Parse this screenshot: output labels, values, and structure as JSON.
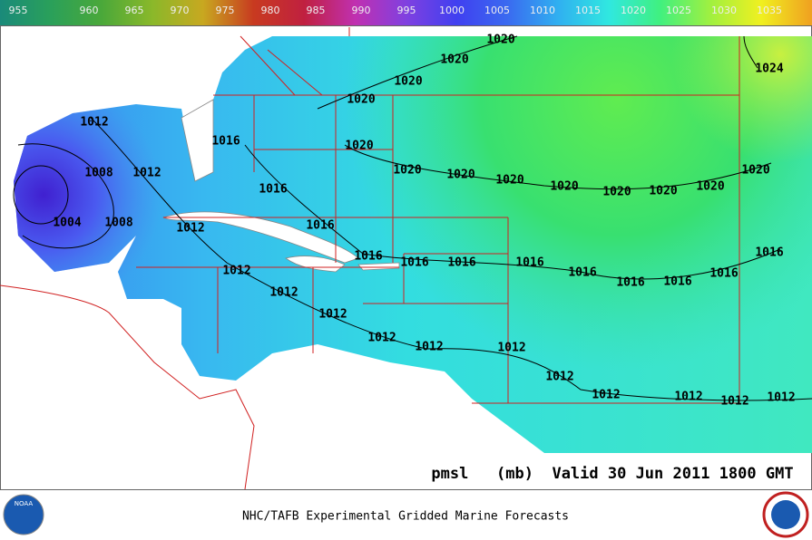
{
  "colorbar": {
    "labels": [
      955,
      960,
      965,
      970,
      975,
      980,
      985,
      990,
      995,
      1000,
      1005,
      1010,
      1015,
      1020,
      1025,
      1030,
      1035
    ],
    "colors": [
      "#1a8a7a",
      "#2aa05a",
      "#4aa83a",
      "#8ab82a",
      "#c8a820",
      "#c83a20",
      "#c02040",
      "#c030b0",
      "#8040e0",
      "#4040f0",
      "#3a6af0",
      "#30b0f0",
      "#30e8e0",
      "#40f080",
      "#a0f040",
      "#f0f020",
      "#f0a020"
    ]
  },
  "contour_labels": [
    1020,
    1020,
    1020,
    1020,
    1020,
    1020,
    1020,
    1020,
    1020,
    1020,
    1020,
    1020,
    1020,
    1024,
    1016,
    1016,
    1016,
    1016,
    1016,
    1016,
    1016,
    1016,
    1016,
    1016,
    1016,
    1016,
    1012,
    1012,
    1012,
    1012,
    1012,
    1012,
    1012,
    1012,
    1012,
    1012,
    1012,
    1012,
    1012,
    1012,
    1008,
    1008,
    1004
  ],
  "map_caption": "pmsl   (mb)  Valid 30 Jun 2011 1800 GMT",
  "footer": {
    "title": "NHC/TAFB Experimental Gridded Marine Forecasts",
    "left_logo": "NOAA"
  }
}
